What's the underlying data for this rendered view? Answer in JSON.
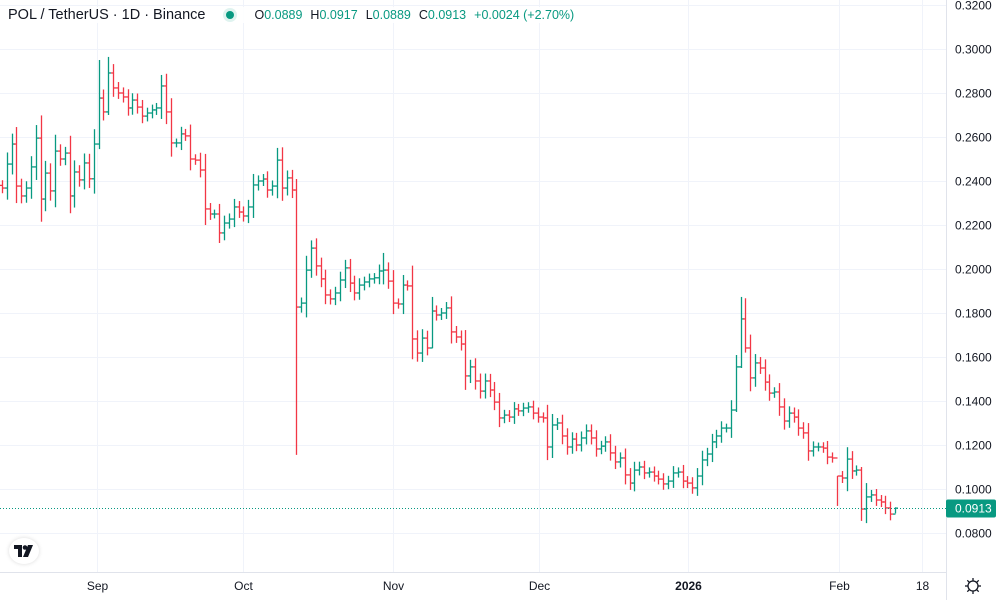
{
  "header": {
    "title": "POL / TetherUS · 1D · Binance",
    "status_color": "#089981",
    "open_label": "O",
    "open": "0.0889",
    "high_label": "H",
    "high": "0.0917",
    "low_label": "L",
    "low": "0.0889",
    "close_label": "C",
    "close": "0.0913",
    "change": "+0.0024 (+2.70%)"
  },
  "chart_data": {
    "type": "ohlc",
    "interval": "1D",
    "colors": {
      "up": "#089981",
      "down": "#f23645",
      "grid": "#f0f3fa"
    },
    "ylim": [
      0.072,
      0.322
    ],
    "y_ticks": [
      "0.3200",
      "0.3000",
      "0.2800",
      "0.2600",
      "0.2400",
      "0.2200",
      "0.2000",
      "0.1800",
      "0.1600",
      "0.1400",
      "0.1200",
      "0.1000",
      "0.0800"
    ],
    "x_ticks": [
      {
        "label": "Sep",
        "bold": false
      },
      {
        "label": "Oct",
        "bold": false
      },
      {
        "label": "Nov",
        "bold": false
      },
      {
        "label": "Dec",
        "bold": false
      },
      {
        "label": "2026",
        "bold": true
      },
      {
        "label": "Feb",
        "bold": false
      },
      {
        "label": "18",
        "bold": false
      }
    ],
    "last_price": "0.0913",
    "close": [
      0.2368,
      0.2477,
      0.2568,
      0.2377,
      0.2332,
      0.2368,
      0.2464,
      0.2595,
      0.2318,
      0.2436,
      0.2355,
      0.2536,
      0.25,
      0.2527,
      0.2332,
      0.2441,
      0.2405,
      0.2482,
      0.241,
      0.2568,
      0.2777,
      0.2714,
      0.2891,
      0.2823,
      0.28,
      0.2782,
      0.2732,
      0.2768,
      0.2736,
      0.2695,
      0.2709,
      0.2723,
      0.2732,
      0.2832,
      0.2714,
      0.2573,
      0.2573,
      0.2614,
      0.2605,
      0.25,
      0.2495,
      0.245,
      0.2273,
      0.225,
      0.225,
      0.2164,
      0.2209,
      0.2227,
      0.2282,
      0.2259,
      0.2241,
      0.2282,
      0.2382,
      0.24,
      0.2409,
      0.2359,
      0.2377,
      0.2495,
      0.2368,
      0.2414,
      0.2359,
      0.1827,
      0.1845,
      0.1995,
      0.2095,
      0.2014,
      0.1955,
      0.1882,
      0.1864,
      0.1891,
      0.195,
      0.2005,
      0.1936,
      0.1891,
      0.1927,
      0.1941,
      0.1955,
      0.196,
      0.1991,
      0.1995,
      0.1945,
      0.1845,
      0.1841,
      0.1927,
      0.1923,
      0.1682,
      0.1618,
      0.1686,
      0.1641,
      0.1809,
      0.1791,
      0.18,
      0.1823,
      0.1714,
      0.1691,
      0.1659,
      0.1514,
      0.1555,
      0.1491,
      0.1445,
      0.1491,
      0.145,
      0.1395,
      0.1323,
      0.1336,
      0.1327,
      0.1364,
      0.1355,
      0.1368,
      0.1373,
      0.1345,
      0.1327,
      0.1323,
      0.1191,
      0.1291,
      0.13,
      0.1241,
      0.1191,
      0.1227,
      0.12,
      0.1232,
      0.1264,
      0.1232,
      0.1182,
      0.1195,
      0.1214,
      0.1164,
      0.1123,
      0.1141,
      0.1064,
      0.1027,
      0.1086,
      0.11,
      0.1073,
      0.1077,
      0.1059,
      0.1045,
      0.1023,
      0.1036,
      0.1073,
      0.1077,
      0.1036,
      0.1027,
      0.1005,
      0.1059,
      0.1132,
      0.1159,
      0.1214,
      0.1241,
      0.1277,
      0.1277,
      0.1359,
      0.1555,
      0.1773,
      0.1641,
      0.1505,
      0.1573,
      0.155,
      0.1486,
      0.1436,
      0.1441,
      0.1373,
      0.1309,
      0.1345,
      0.1327,
      0.1277,
      0.1255,
      0.1173,
      0.1191,
      0.1191,
      0.1186,
      0.1145,
      0.1141,
      0.1059,
      0.105,
      0.1136,
      0.1082,
      0.1086,
      0.0909,
      0.0964,
      0.0973,
      0.095,
      0.0941,
      0.0914,
      0.0886,
      0.0913
    ],
    "first_open": 0.238,
    "extremes": [
      {
        "index": 20,
        "high": 0.295,
        "low": 0.2545
      },
      {
        "index": 22,
        "high": 0.2964,
        "low": 0.27
      },
      {
        "index": 61,
        "high": 0.2409,
        "low": 0.1155
      },
      {
        "index": 64,
        "high": 0.213,
        "low": 0.196
      },
      {
        "index": 79,
        "high": 0.2073,
        "low": 0.193
      },
      {
        "index": 89,
        "high": 0.1873,
        "low": 0.164
      },
      {
        "index": 152,
        "high": 0.1609,
        "low": 0.135
      },
      {
        "index": 153,
        "high": 0.1873,
        "low": 0.155
      },
      {
        "index": 154,
        "high": 0.1867,
        "low": 0.162
      },
      {
        "index": 173,
        "high": 0.1059,
        "low": 0.0923
      },
      {
        "index": 175,
        "high": 0.119,
        "low": 0.099
      },
      {
        "index": 178,
        "high": 0.11,
        "low": 0.0855
      },
      {
        "index": 179,
        "high": 0.1027,
        "low": 0.0845
      },
      {
        "index": 185,
        "high": 0.0917,
        "low": 0.0889
      }
    ]
  },
  "icons": {
    "logo": "tradingview-logo",
    "settings": "gear-icon"
  }
}
